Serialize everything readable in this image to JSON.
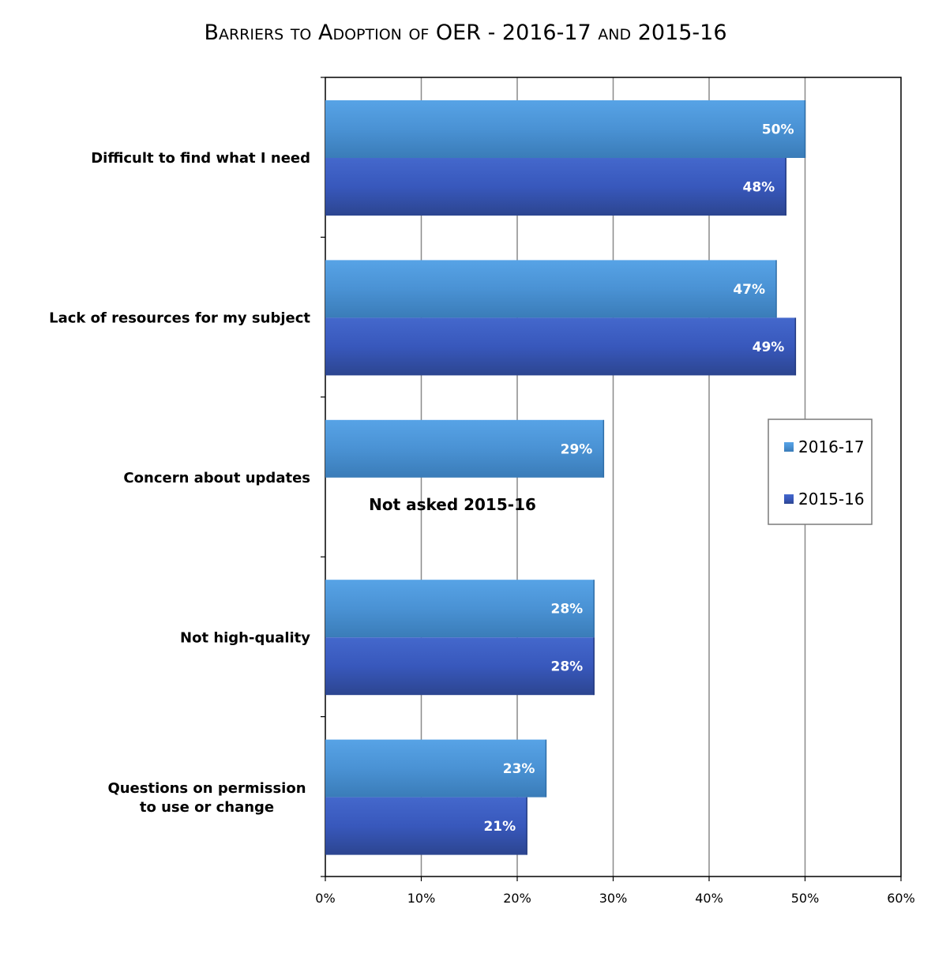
{
  "chart_data": {
    "type": "bar",
    "orientation": "horizontal",
    "title": "Barriers to Adoption of OER - 2016-17 and 2015-16",
    "categories": [
      "Difficult to find what I need",
      "Lack of resources for my subject",
      "Concern about updates",
      "Not high-quality",
      "Questions on permission to use or change"
    ],
    "category_lines": [
      [
        "Difficult to find what I need"
      ],
      [
        "Lack of resources for my subject"
      ],
      [
        "Concern about updates"
      ],
      [
        "Not high-quality"
      ],
      [
        "Questions on permission",
        "to use or change"
      ]
    ],
    "series": [
      {
        "name": "2016-17",
        "values": [
          50,
          47,
          29,
          28,
          23
        ],
        "labels": [
          "50%",
          "47%",
          "29%",
          "28%",
          "23%"
        ],
        "color": "#4b93d6"
      },
      {
        "name": "2015-16",
        "values": [
          48,
          49,
          null,
          28,
          21
        ],
        "labels": [
          "48%",
          "49%",
          "",
          "28%",
          "21%"
        ],
        "color": "#3a5cc0"
      }
    ],
    "xlim": [
      0,
      60
    ],
    "ticks": [
      0,
      10,
      20,
      30,
      40,
      50,
      60
    ],
    "tick_labels": [
      "0%",
      "10%",
      "20%",
      "30%",
      "40%",
      "50%",
      "60%"
    ],
    "grid": true,
    "legend": {
      "position": "right",
      "entries": [
        "2016-17",
        "2015-16"
      ]
    },
    "annotations": [
      {
        "text": "Not asked 2015-16",
        "category_index": 2
      }
    ]
  }
}
